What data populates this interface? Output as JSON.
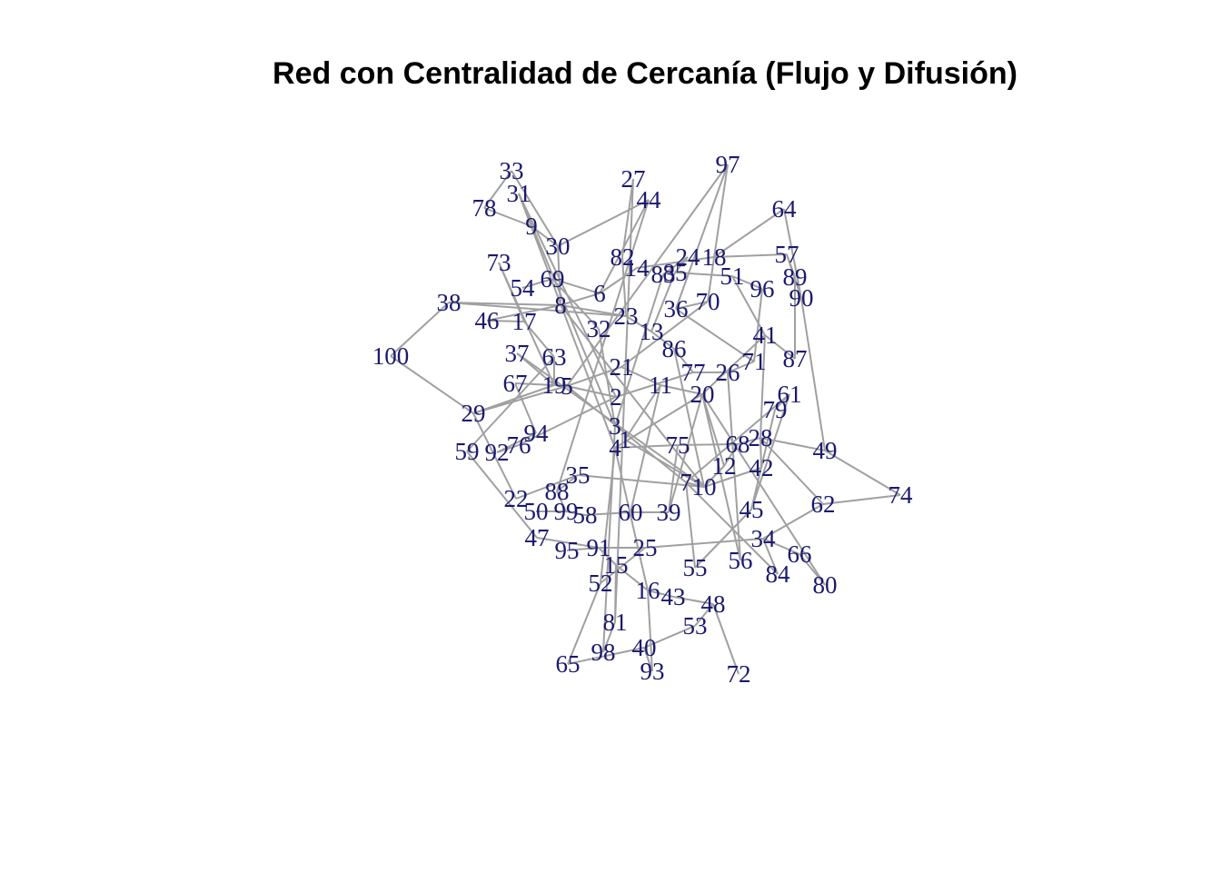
{
  "title": "Red con Centralidad de Cercanía (Flujo y Difusión)",
  "colors": {
    "label": "#191970",
    "edge": "#a0a0a0",
    "background": "#ffffff"
  },
  "graph": {
    "nodes": [
      "1",
      "2",
      "3",
      "4",
      "5",
      "6",
      "7",
      "8",
      "9",
      "10",
      "11",
      "12",
      "13",
      "14",
      "15",
      "16",
      "17",
      "18",
      "19",
      "20",
      "21",
      "22",
      "23",
      "24",
      "25",
      "26",
      "27",
      "28",
      "29",
      "30",
      "31",
      "32",
      "33",
      "34",
      "35",
      "36",
      "37",
      "38",
      "39",
      "40",
      "41",
      "42",
      "43",
      "44",
      "45",
      "46",
      "47",
      "48",
      "49",
      "50",
      "51",
      "52",
      "53",
      "54",
      "55",
      "56",
      "57",
      "58",
      "59",
      "60",
      "61",
      "62",
      "63",
      "64",
      "65",
      "66",
      "67",
      "68",
      "69",
      "70",
      "71",
      "72",
      "73",
      "74",
      "75",
      "76",
      "77",
      "78",
      "79",
      "80",
      "81",
      "82",
      "83",
      "84",
      "85",
      "86",
      "87",
      "88",
      "89",
      "90",
      "91",
      "92",
      "93",
      "94",
      "95",
      "96",
      "97",
      "98",
      "99",
      "100"
    ],
    "edges": [
      [
        "100",
        "38"
      ],
      [
        "100",
        "29"
      ],
      [
        "38",
        "23"
      ],
      [
        "38",
        "8"
      ],
      [
        "46",
        "17"
      ],
      [
        "33",
        "30"
      ],
      [
        "31",
        "9"
      ],
      [
        "78",
        "9"
      ],
      [
        "9",
        "30"
      ],
      [
        "30",
        "8"
      ],
      [
        "30",
        "44"
      ],
      [
        "73",
        "17"
      ],
      [
        "73",
        "19"
      ],
      [
        "54",
        "69"
      ],
      [
        "69",
        "32"
      ],
      [
        "69",
        "6"
      ],
      [
        "8",
        "23"
      ],
      [
        "8",
        "6"
      ],
      [
        "8",
        "10"
      ],
      [
        "6",
        "14"
      ],
      [
        "6",
        "44"
      ],
      [
        "82",
        "23"
      ],
      [
        "82",
        "27"
      ],
      [
        "27",
        "81"
      ],
      [
        "44",
        "88"
      ],
      [
        "14",
        "18"
      ],
      [
        "24",
        "85"
      ],
      [
        "18",
        "57"
      ],
      [
        "18",
        "64"
      ],
      [
        "57",
        "89"
      ],
      [
        "57",
        "90"
      ],
      [
        "64",
        "90"
      ],
      [
        "89",
        "87"
      ],
      [
        "87",
        "41"
      ],
      [
        "90",
        "49"
      ],
      [
        "49",
        "74"
      ],
      [
        "74",
        "62"
      ],
      [
        "62",
        "34"
      ],
      [
        "51",
        "96"
      ],
      [
        "51",
        "41"
      ],
      [
        "97",
        "36"
      ],
      [
        "97",
        "70"
      ],
      [
        "97",
        "5"
      ],
      [
        "85",
        "51"
      ],
      [
        "85",
        "13"
      ],
      [
        "36",
        "70"
      ],
      [
        "70",
        "21"
      ],
      [
        "23",
        "13"
      ],
      [
        "13",
        "86"
      ],
      [
        "86",
        "77"
      ],
      [
        "77",
        "2"
      ],
      [
        "77",
        "26"
      ],
      [
        "26",
        "71"
      ],
      [
        "71",
        "36"
      ],
      [
        "41",
        "28"
      ],
      [
        "61",
        "79"
      ],
      [
        "61",
        "7"
      ],
      [
        "79",
        "45"
      ],
      [
        "28",
        "68"
      ],
      [
        "28",
        "42"
      ],
      [
        "28",
        "49"
      ],
      [
        "68",
        "12"
      ],
      [
        "12",
        "10"
      ],
      [
        "12",
        "20"
      ],
      [
        "20",
        "11"
      ],
      [
        "20",
        "4"
      ],
      [
        "11",
        "21"
      ],
      [
        "21",
        "5"
      ],
      [
        "2",
        "5"
      ],
      [
        "2",
        "31"
      ],
      [
        "3",
        "31"
      ],
      [
        "31",
        "4"
      ],
      [
        "4",
        "16"
      ],
      [
        "4",
        "52"
      ],
      [
        "5",
        "19"
      ],
      [
        "19",
        "63"
      ],
      [
        "19",
        "37"
      ],
      [
        "19",
        "67"
      ],
      [
        "19",
        "29"
      ],
      [
        "5",
        "29"
      ],
      [
        "63",
        "59"
      ],
      [
        "67",
        "94"
      ],
      [
        "94",
        "92"
      ],
      [
        "92",
        "76"
      ],
      [
        "76",
        "2"
      ],
      [
        "29",
        "22"
      ],
      [
        "22",
        "35"
      ],
      [
        "35",
        "88"
      ],
      [
        "88",
        "99"
      ],
      [
        "99",
        "58"
      ],
      [
        "58",
        "60"
      ],
      [
        "60",
        "39"
      ],
      [
        "39",
        "75"
      ],
      [
        "75",
        "4"
      ],
      [
        "75",
        "68"
      ],
      [
        "50",
        "99"
      ],
      [
        "47",
        "91"
      ],
      [
        "95",
        "91"
      ],
      [
        "91",
        "15"
      ],
      [
        "91",
        "25"
      ],
      [
        "25",
        "34"
      ],
      [
        "25",
        "52"
      ],
      [
        "15",
        "16"
      ],
      [
        "16",
        "43"
      ],
      [
        "43",
        "48"
      ],
      [
        "48",
        "72"
      ],
      [
        "48",
        "53"
      ],
      [
        "53",
        "40"
      ],
      [
        "40",
        "93"
      ],
      [
        "40",
        "65"
      ],
      [
        "81",
        "98"
      ],
      [
        "15",
        "81"
      ],
      [
        "55",
        "7"
      ],
      [
        "55",
        "45"
      ],
      [
        "56",
        "20"
      ],
      [
        "34",
        "84"
      ],
      [
        "34",
        "66"
      ],
      [
        "66",
        "80"
      ],
      [
        "80",
        "20"
      ],
      [
        "84",
        "7"
      ],
      [
        "45",
        "61"
      ],
      [
        "42",
        "10"
      ],
      [
        "7",
        "10"
      ],
      [
        "7",
        "5"
      ],
      [
        "10",
        "35"
      ],
      [
        "39",
        "20"
      ],
      [
        "60",
        "11"
      ],
      [
        "16",
        "93"
      ],
      [
        "52",
        "65"
      ],
      [
        "98",
        "3"
      ],
      [
        "86",
        "10"
      ],
      [
        "32",
        "3"
      ],
      [
        "17",
        "63"
      ],
      [
        "37",
        "10"
      ],
      [
        "46",
        "8"
      ],
      [
        "78",
        "33"
      ],
      [
        "59",
        "47"
      ],
      [
        "83",
        "24"
      ],
      [
        "83",
        "3"
      ],
      [
        "96",
        "71"
      ],
      [
        "41",
        "20"
      ],
      [
        "26",
        "56"
      ],
      [
        "62",
        "28"
      ],
      [
        "1",
        "11"
      ],
      [
        "1",
        "10"
      ]
    ]
  }
}
